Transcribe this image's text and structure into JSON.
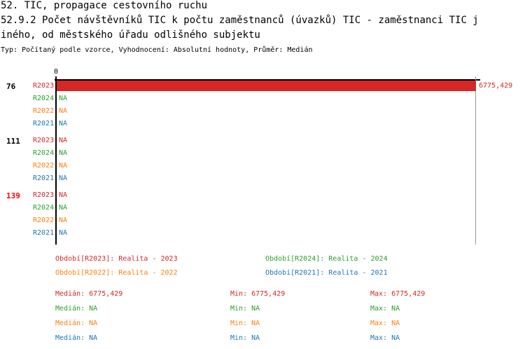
{
  "header": {
    "title1": "52. TIC, propagace cestovního ruchu",
    "title2": "52.9.2 Počet návštěvníků TIC k počtu zaměstnanců (úvazků) TIC - zaměstnanci TIC j",
    "title3": "iného, od městského úřadu odlišného subjektu",
    "subtitle": "Typ: Počítaný podle vzorce, Vyhodnocení: Absolutní hodnoty, Průměr: Medián"
  },
  "colors": {
    "R2023": "#d62728",
    "R2024": "#2ca02c",
    "R2022": "#ff7f0e",
    "R2021": "#1f77b4",
    "highlight": "#ff0000"
  },
  "chart_data": {
    "type": "bar",
    "orientation": "horizontal",
    "xlim": [
      0,
      6775.429
    ],
    "x_ticks": [
      "0"
    ],
    "groups": [
      {
        "label": "76",
        "highlight": false,
        "bars": [
          {
            "series": "R2023",
            "value": 6775.429,
            "label": "6775,429"
          },
          {
            "series": "R2024",
            "value": null,
            "label": "NA"
          },
          {
            "series": "R2022",
            "value": null,
            "label": "NA"
          },
          {
            "series": "R2021",
            "value": null,
            "label": "NA"
          }
        ]
      },
      {
        "label": "111",
        "highlight": false,
        "bars": [
          {
            "series": "R2023",
            "value": null,
            "label": "NA"
          },
          {
            "series": "R2024",
            "value": null,
            "label": "NA"
          },
          {
            "series": "R2022",
            "value": null,
            "label": "NA"
          },
          {
            "series": "R2021",
            "value": null,
            "label": "NA"
          }
        ]
      },
      {
        "label": "139",
        "highlight": true,
        "bars": [
          {
            "series": "R2023",
            "value": null,
            "label": "NA"
          },
          {
            "series": "R2024",
            "value": null,
            "label": "NA"
          },
          {
            "series": "R2022",
            "value": null,
            "label": "NA"
          },
          {
            "series": "R2021",
            "value": null,
            "label": "NA"
          }
        ]
      }
    ],
    "legend": [
      {
        "series": "R2023",
        "text": "Období[R2023]: Realita - 2023"
      },
      {
        "series": "R2024",
        "text": "Období[R2024]: Realita - 2024"
      },
      {
        "series": "R2022",
        "text": "Období[R2022]: Realita - 2022"
      },
      {
        "series": "R2021",
        "text": "Období[R2021]: Realita - 2021"
      }
    ],
    "stats": [
      {
        "series": "R2023",
        "median": "Medián: 6775,429",
        "min": "Min: 6775,429",
        "max": "Max: 6775,429"
      },
      {
        "series": "R2024",
        "median": "Medián: NA",
        "min": "Min: NA",
        "max": "Max: NA"
      },
      {
        "series": "R2022",
        "median": "Medián: NA",
        "min": "Min: NA",
        "max": "Max: NA"
      },
      {
        "series": "R2021",
        "median": "Medián: NA",
        "min": "Min: NA",
        "max": "Max: NA"
      }
    ]
  }
}
